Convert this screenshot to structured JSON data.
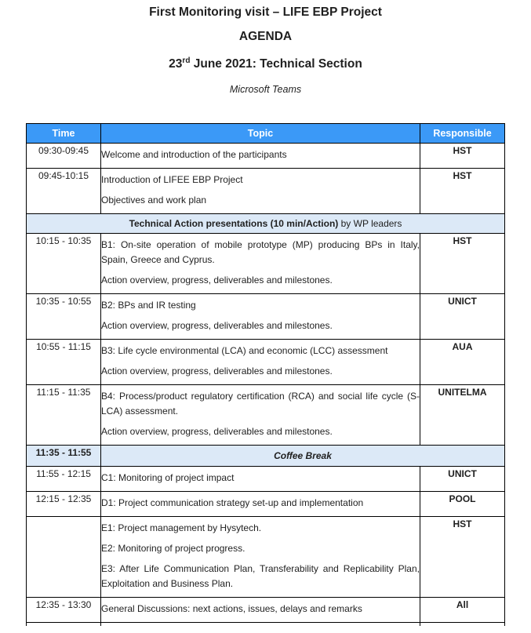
{
  "page": {
    "title": "First Monitoring visit – LIFE EBP Project",
    "subtitle": "AGENDA",
    "date_prefix": "23",
    "date_superscript": "rd",
    "date_rest": " June 2021: Technical Section",
    "platform": "Microsoft Teams"
  },
  "colors": {
    "header_bg": "#3B99F7",
    "header_text": "#FFFFFF",
    "band_bg": "#DCE9F7",
    "border": "#000000"
  },
  "table": {
    "headers": [
      "Time",
      "Topic",
      "Responsible"
    ],
    "rows": [
      {
        "type": "item",
        "time": "09:30-09:45",
        "topic": [
          "Welcome and introduction of the participants"
        ],
        "responsible": "HST"
      },
      {
        "type": "item",
        "time": "09:45-10:15",
        "topic": [
          "Introduction of LIFEE EBP Project",
          "Objectives and work plan"
        ],
        "responsible": "HST"
      },
      {
        "type": "band",
        "bold": "Technical Action presentations (10 min/Action)",
        "regular": " by WP leaders"
      },
      {
        "type": "item",
        "time": "10:15 - 10:35",
        "topic": [
          "B1: On-site operation of mobile prototype (MP) producing BPs in Italy, Spain, Greece and Cyprus.",
          "Action overview, progress, deliverables and milestones."
        ],
        "responsible": "HST"
      },
      {
        "type": "item",
        "time": "10:35 - 10:55",
        "topic": [
          "B2: BPs and IR testing",
          "Action overview, progress, deliverables and milestones."
        ],
        "responsible": "UNICT"
      },
      {
        "type": "item",
        "time": "10:55 - 11:15",
        "topic": [
          "B3: Life cycle environmental (LCA) and economic (LCC) assessment",
          "Action overview, progress, deliverables and milestones."
        ],
        "responsible": "AUA"
      },
      {
        "type": "item",
        "time": "11:15 - 11:35",
        "topic": [
          "B4: Process/product regulatory certification (RCA) and social life cycle (S-LCA) assessment.",
          "Action overview, progress, deliverables and milestones."
        ],
        "responsible": "UNITELMA"
      },
      {
        "type": "coffee",
        "time": "11:35 - 11:55",
        "label": "Coffee Break"
      },
      {
        "type": "item",
        "time": "11:55 - 12:15",
        "topic": [
          "C1: Monitoring of project impact"
        ],
        "responsible": "UNICT"
      },
      {
        "type": "item",
        "time": "12:15 - 12:35",
        "topic": [
          "D1: Project communication strategy set-up and implementation"
        ],
        "responsible": "POOL"
      },
      {
        "type": "item",
        "time": "",
        "topic": [
          "E1: Project management by Hysytech.",
          "E2: Monitoring of project progress.",
          "E3: After Life Communication Plan, Transferability and Replicability Plan, Exploitation and Business Plan."
        ],
        "responsible": "HST"
      },
      {
        "type": "item",
        "time": "12:35 - 13:30",
        "topic": [
          "General Discussions: next actions, issues, delays and remarks"
        ],
        "responsible": "All"
      },
      {
        "type": "partial"
      }
    ]
  }
}
